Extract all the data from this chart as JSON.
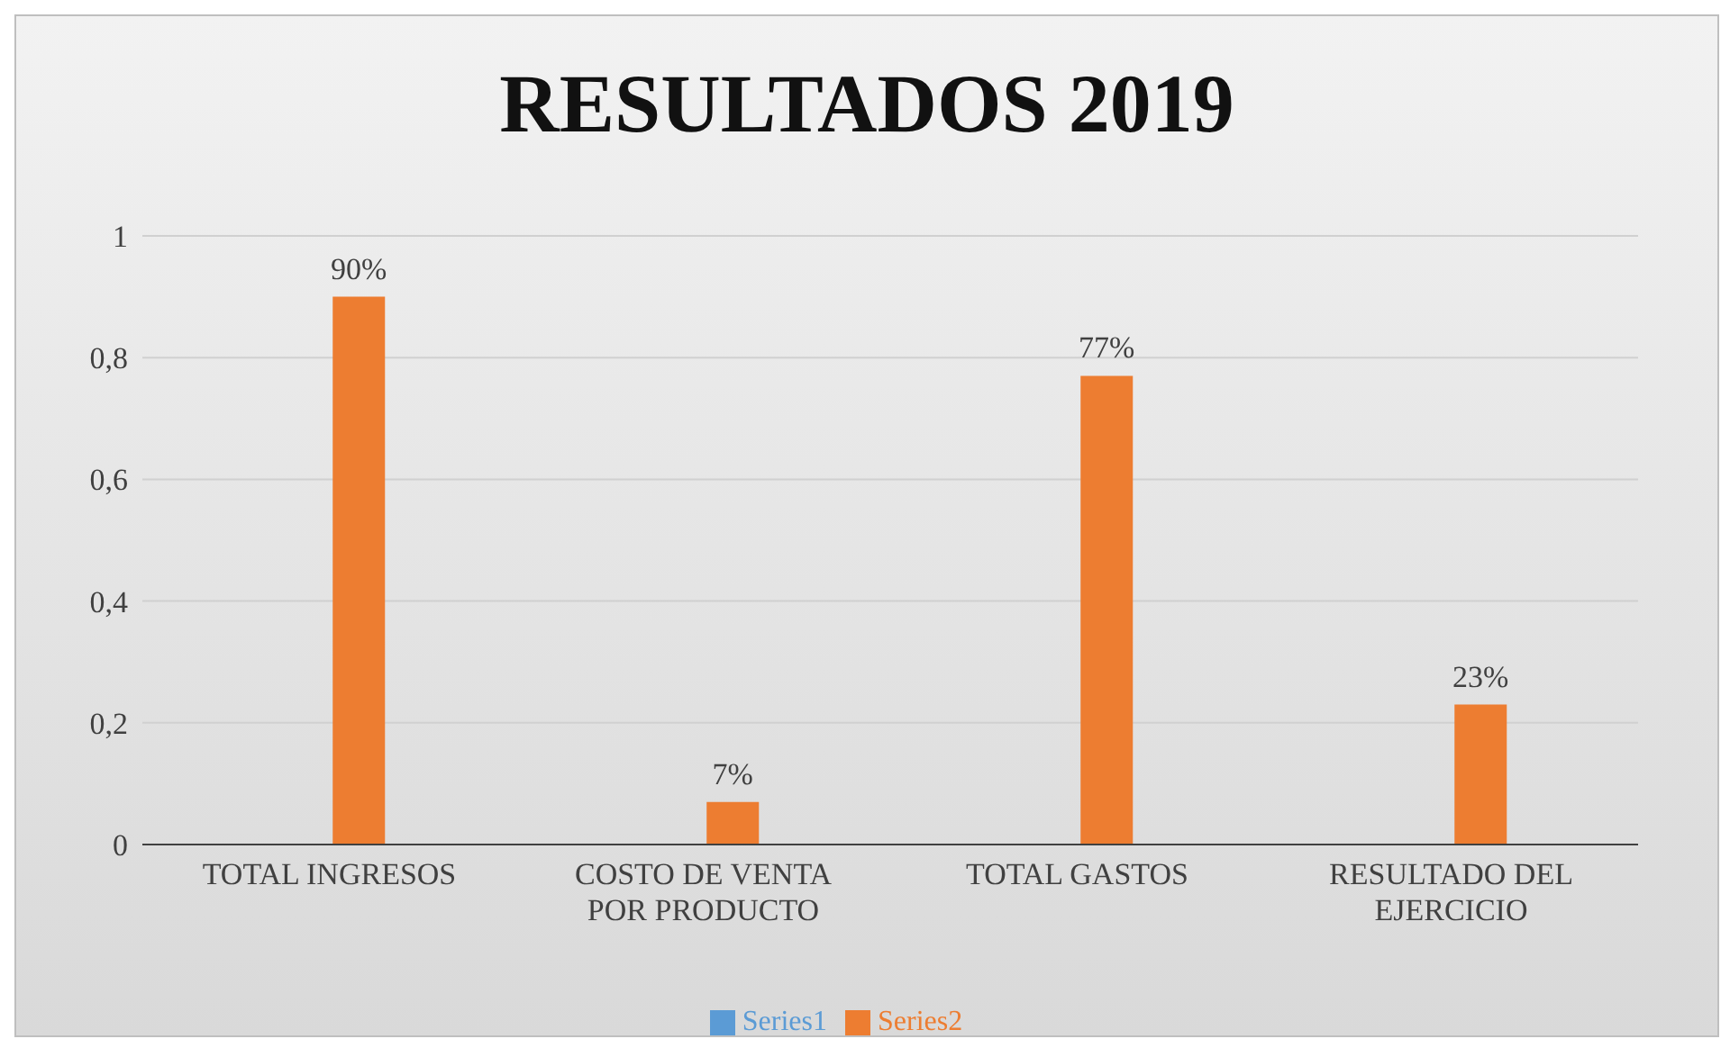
{
  "chart_data": {
    "type": "bar",
    "title": "RESULTADOS 2019",
    "categories": [
      "TOTAL INGRESOS",
      "COSTO DE VENTA POR PRODUCTO",
      "TOTAL GASTOS",
      "RESULTADO DEL EJERCICIO"
    ],
    "series": [
      {
        "name": "Series1",
        "color": "#5b9bd5",
        "values": [
          null,
          null,
          null,
          null
        ]
      },
      {
        "name": "Series2",
        "color": "#ed7d31",
        "values": [
          0.9,
          0.07,
          0.77,
          0.23
        ],
        "value_labels": [
          "90%",
          "7%",
          "77%",
          "23%"
        ]
      }
    ],
    "ylim": [
      0,
      1
    ],
    "yticks": [
      0,
      {
        "value": 0.2,
        "label": "0,2"
      },
      {
        "value": 0.4,
        "label": "0,4"
      },
      {
        "value": 0.6,
        "label": "0,6"
      },
      {
        "value": 0.8,
        "label": "0,8"
      },
      1
    ],
    "grid": "y",
    "legend": "bottom"
  }
}
